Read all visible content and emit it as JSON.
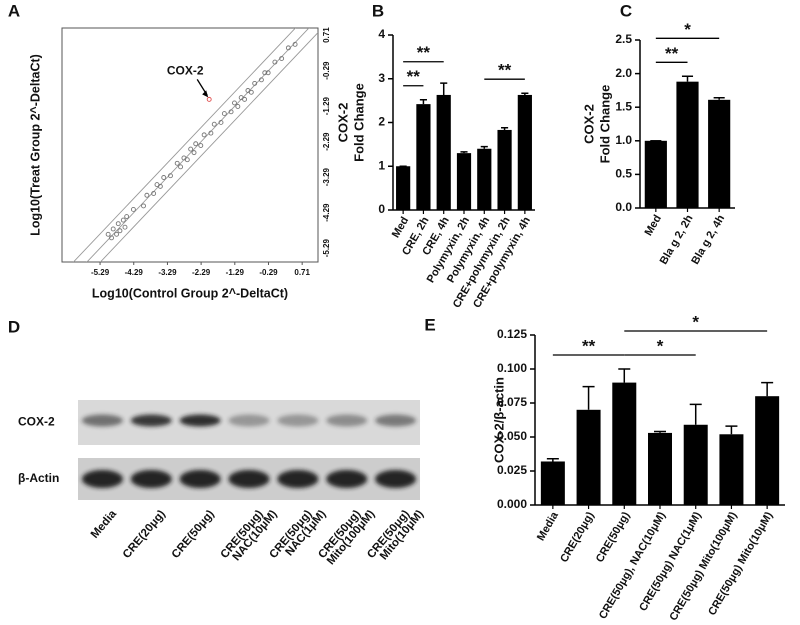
{
  "chart_data": [
    {
      "type": "scatter",
      "panel": "A",
      "xlabel": "Log10(Control Group 2^-DeltaCt)",
      "ylabel": "Log10(Treat Group 2^-DeltaCt)",
      "xlim": [
        -6.42,
        1.18
      ],
      "ylim": [
        -5.68,
        0.91
      ],
      "xticks": [
        -5.29,
        -4.29,
        -3.29,
        -2.29,
        -1.29,
        -0.29,
        0.71
      ],
      "yticks": [
        -5.29,
        -4.29,
        -3.29,
        -2.29,
        -1.29,
        -0.29,
        0.71
      ],
      "fold_lines": [
        -0.4,
        0,
        0.4
      ],
      "series": [
        {
          "color": "#777777",
          "x": [
            -5.05,
            -4.95,
            -4.9,
            -4.8,
            -4.75,
            -4.7,
            -4.6,
            -4.55,
            -4.5,
            -4.3,
            -4.0,
            -3.9,
            -3.7,
            -3.6,
            -3.5,
            -3.4,
            -3.2,
            -3.0,
            -2.9,
            -2.8,
            -2.7,
            -2.6,
            -2.5,
            -2.45,
            -2.3,
            -2.2,
            -2.0,
            -1.9,
            -1.7,
            -1.6,
            -1.4,
            -1.3,
            -1.2,
            -1.1,
            -1.0,
            -0.9,
            -0.8,
            -0.7,
            -0.5,
            -0.4,
            -0.3,
            -0.1,
            0.1,
            0.3,
            0.5
          ],
          "y": [
            -4.9,
            -5.0,
            -4.75,
            -4.9,
            -4.6,
            -4.8,
            -4.5,
            -4.7,
            -4.4,
            -4.2,
            -4.1,
            -3.8,
            -3.75,
            -3.5,
            -3.55,
            -3.3,
            -3.25,
            -2.9,
            -3.0,
            -2.75,
            -2.8,
            -2.5,
            -2.6,
            -2.35,
            -2.4,
            -2.1,
            -2.05,
            -1.8,
            -1.75,
            -1.5,
            -1.45,
            -1.2,
            -1.3,
            -1.05,
            -1.1,
            -0.85,
            -0.9,
            -0.65,
            -0.55,
            -0.35,
            -0.35,
            -0.05,
            0.05,
            0.35,
            0.45
          ]
        },
        {
          "color": "#e05050",
          "x": [
            -2.05
          ],
          "y": [
            -1.1
          ]
        }
      ],
      "annotation": "COX-2"
    },
    {
      "type": "bar",
      "panel": "B",
      "ylabel": [
        "COX-2",
        "Fold Change"
      ],
      "color": "#000000",
      "categories": [
        "Med",
        "CRE, 2h",
        "CRE, 4h",
        "Polymyxin, 2h",
        "Polymyxin, 4h",
        "CRE+polymyxin, 2h",
        "CRE+polymyxin, 4h"
      ],
      "values": [
        1.0,
        2.42,
        2.63,
        1.3,
        1.4,
        1.83,
        2.63
      ],
      "errors": [
        0,
        0.1,
        0.27,
        0.03,
        0.05,
        0.05,
        0.04
      ],
      "ylim": [
        0,
        4
      ],
      "yticks": [
        0,
        1,
        2,
        3,
        4
      ],
      "annotations": [
        {
          "text": "**",
          "from": 0,
          "to": 1
        },
        {
          "text": "**",
          "from": 0,
          "to": 2
        },
        {
          "text": "**",
          "from": 4,
          "to": 6
        }
      ]
    },
    {
      "type": "bar",
      "panel": "C",
      "ylabel": [
        "COX-2",
        "Fold Change"
      ],
      "color": "#000000",
      "categories": [
        "Med",
        "Bla g 2, 2h",
        "Bla g 2, 4h"
      ],
      "values": [
        1.0,
        1.88,
        1.61
      ],
      "errors": [
        0,
        0.08,
        0.03
      ],
      "ylim": [
        0,
        2.5
      ],
      "yticks": [
        {
          "value": 0,
          "label": "0.0"
        },
        0.5,
        {
          "value": 1,
          "label": "1.0"
        },
        1.5,
        {
          "value": 2,
          "label": "2.0"
        },
        2.5
      ],
      "annotations": [
        {
          "text": "**",
          "from": 0,
          "to": 1
        },
        {
          "text": "*",
          "from": 0,
          "to": 2
        }
      ]
    },
    {
      "type": "bar",
      "panel": "E",
      "ylabel": [
        "COX-2/β-actin"
      ],
      "color": "#000000",
      "categories": [
        "Media",
        "CRE(20μg)",
        "CRE(50μg)",
        "CRE(50μg), NAC(10μM)",
        "CRE(50μg) NAC(1μM)",
        "CRE(50μg) Mito(100μM)",
        "CRE(50μg) Mito(10μM)"
      ],
      "values": [
        0.032,
        0.07,
        0.09,
        0.053,
        0.059,
        0.052,
        0.08
      ],
      "errors": [
        0.002,
        0.017,
        0.01,
        0.001,
        0.015,
        0.006,
        0.01
      ],
      "ylim": [
        0,
        0.125
      ],
      "yticks": [
        {
          "value": 0,
          "label": "0.000"
        },
        {
          "value": 0.025,
          "label": "0.025"
        },
        {
          "value": 0.05,
          "label": "0.050"
        },
        {
          "value": 0.075,
          "label": "0.075"
        },
        {
          "value": 0.1,
          "label": "0.100"
        },
        {
          "value": 0.125,
          "label": "0.125"
        }
      ],
      "annotations": [
        {
          "text": "**",
          "from": 0,
          "to": 2
        },
        {
          "text": "*",
          "from": 2,
          "to": 4
        },
        {
          "text": "*",
          "from": 2,
          "to": 6
        }
      ]
    }
  ],
  "blot": {
    "panel": "D",
    "rows": [
      "COX-2",
      "β-Actin"
    ],
    "lanes": [
      [
        "Media"
      ],
      [
        "CRE(20μg)"
      ],
      [
        "CRE(50μg)"
      ],
      [
        "CRE(50μg)",
        "NAC(10μM)"
      ],
      [
        "CRE(50μg)",
        "NAC(1μM)"
      ],
      [
        "CRE(50μg)",
        "Mito(100μM)"
      ],
      [
        "CRE(50μg)",
        "Mito(10μM)"
      ]
    ]
  }
}
